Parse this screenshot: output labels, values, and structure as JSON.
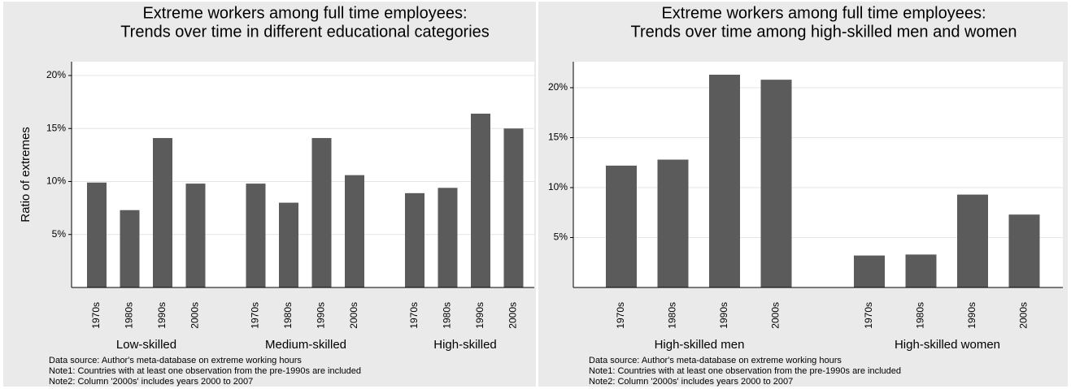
{
  "chart_data": [
    {
      "type": "bar",
      "title": [
        "Extreme workers among full time employees:",
        "Trends over time in different educational categories"
      ],
      "ylabel": "Ratio of extremes",
      "ylim": [
        0,
        21.3
      ],
      "yticks": [
        {
          "value": 5,
          "label": "5%"
        },
        {
          "value": 10,
          "label": "10%"
        },
        {
          "value": 15,
          "label": "15%"
        },
        {
          "value": 20,
          "label": "20%"
        }
      ],
      "grid": true,
      "color": "#5b5b5b",
      "groups": [
        {
          "name": "Low-skilled",
          "categories": [
            "1970s",
            "1980s",
            "1990s",
            "2000s"
          ],
          "values": [
            9.9,
            7.3,
            14.1,
            9.8
          ]
        },
        {
          "name": "Medium-skilled",
          "categories": [
            "1970s",
            "1980s",
            "1990s",
            "2000s"
          ],
          "values": [
            9.8,
            8.0,
            14.1,
            10.6
          ]
        },
        {
          "name": "High-skilled",
          "categories": [
            "1970s",
            "1980s",
            "1990s",
            "2000s"
          ],
          "values": [
            8.9,
            9.4,
            16.4,
            15.0
          ]
        }
      ],
      "notes": [
        "Data source: Author's meta-database on extreme working hours",
        "Note1: Countries with at least one observation from the pre-1990s are included",
        "Note2: Column '2000s' includes years 2000 to 2007"
      ]
    },
    {
      "type": "bar",
      "title": [
        "Extreme workers among full time employees:",
        "Trends over time among high-skilled men and women"
      ],
      "ylim": [
        0,
        22.6
      ],
      "yticks": [
        {
          "value": 5,
          "label": "5%"
        },
        {
          "value": 10,
          "label": "10%"
        },
        {
          "value": 15,
          "label": "15%"
        },
        {
          "value": 20,
          "label": "20%"
        }
      ],
      "grid": true,
      "color": "#5b5b5b",
      "groups": [
        {
          "name": "High-skilled men",
          "categories": [
            "1970s",
            "1980s",
            "1990s",
            "2000s"
          ],
          "values": [
            12.2,
            12.8,
            21.3,
            20.8
          ]
        },
        {
          "name": "High-skilled women",
          "categories": [
            "1970s",
            "1980s",
            "1990s",
            "2000s"
          ],
          "values": [
            3.2,
            3.3,
            9.3,
            7.3
          ]
        }
      ],
      "notes": [
        "Data source: Author's meta-database on extreme working hours",
        "Note1: Countries with at least one observation from the pre-1990s are included",
        "Note2: Column '2000s' includes years 2000 to 2007"
      ]
    }
  ]
}
